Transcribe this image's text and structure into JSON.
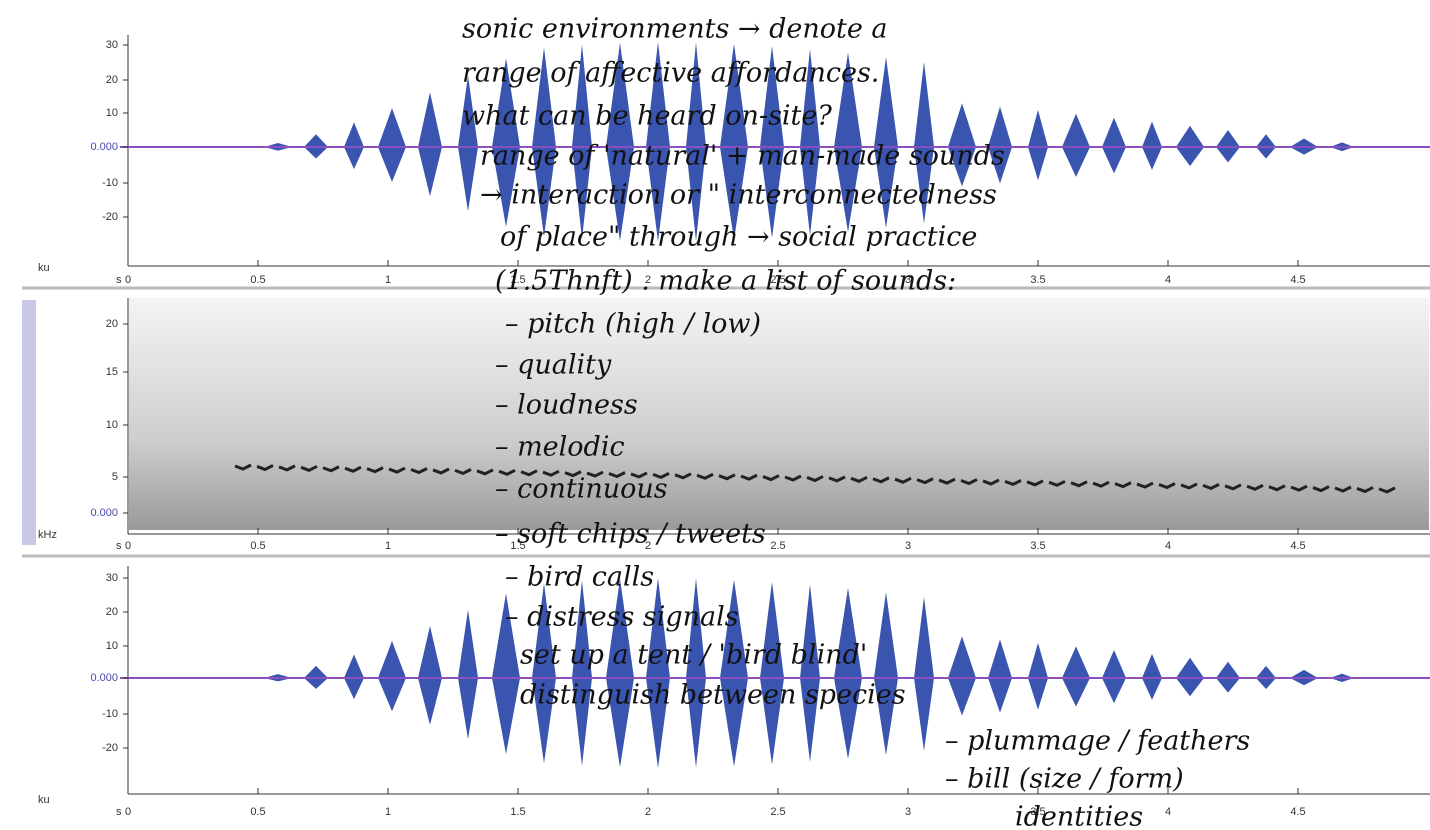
{
  "panels": [
    {
      "unit": "ku",
      "yticks": [
        "30",
        "20",
        "10",
        "0.000",
        "-10",
        "-20"
      ],
      "x_unit": "s",
      "xticks": [
        "0",
        "0.5",
        "1",
        "1.5",
        "2",
        "2.5",
        "3",
        "3.5",
        "4",
        "4.5"
      ]
    },
    {
      "unit": "kHz",
      "yticks": [
        "20",
        "15",
        "10",
        "5",
        "0.000"
      ],
      "x_unit": "s",
      "xticks": [
        "0",
        "0.5",
        "1",
        "1.5",
        "2",
        "2.5",
        "3",
        "3.5",
        "4",
        "4.5"
      ]
    },
    {
      "unit": "ku",
      "yticks": [
        "30",
        "20",
        "10",
        "0.000",
        "-10",
        "-20"
      ],
      "x_unit": "s",
      "xticks": [
        "0",
        "0.5",
        "1",
        "1.5",
        "2",
        "2.5",
        "3",
        "3.5",
        "4",
        "4.5"
      ]
    }
  ],
  "notes": [
    "sonic environments → denote a",
    "range of affective affordances.",
    "what can be heard on-site?",
    "range of 'natural' + man-made sounds",
    "→ interaction or \" interconnectedness",
    "of place\" through → social practice",
    "(1.5Thnft) . make a list of sounds:",
    "– pitch (high / low)",
    "– quality",
    "– loudness",
    "– melodic",
    "– continuous",
    "– soft chips / tweets",
    "– bird calls",
    "– distress signals",
    "set up a tent / 'bird blind'",
    "distinguish between species",
    "– plummage / feathers",
    "– bill (size / form)",
    "identities"
  ]
}
